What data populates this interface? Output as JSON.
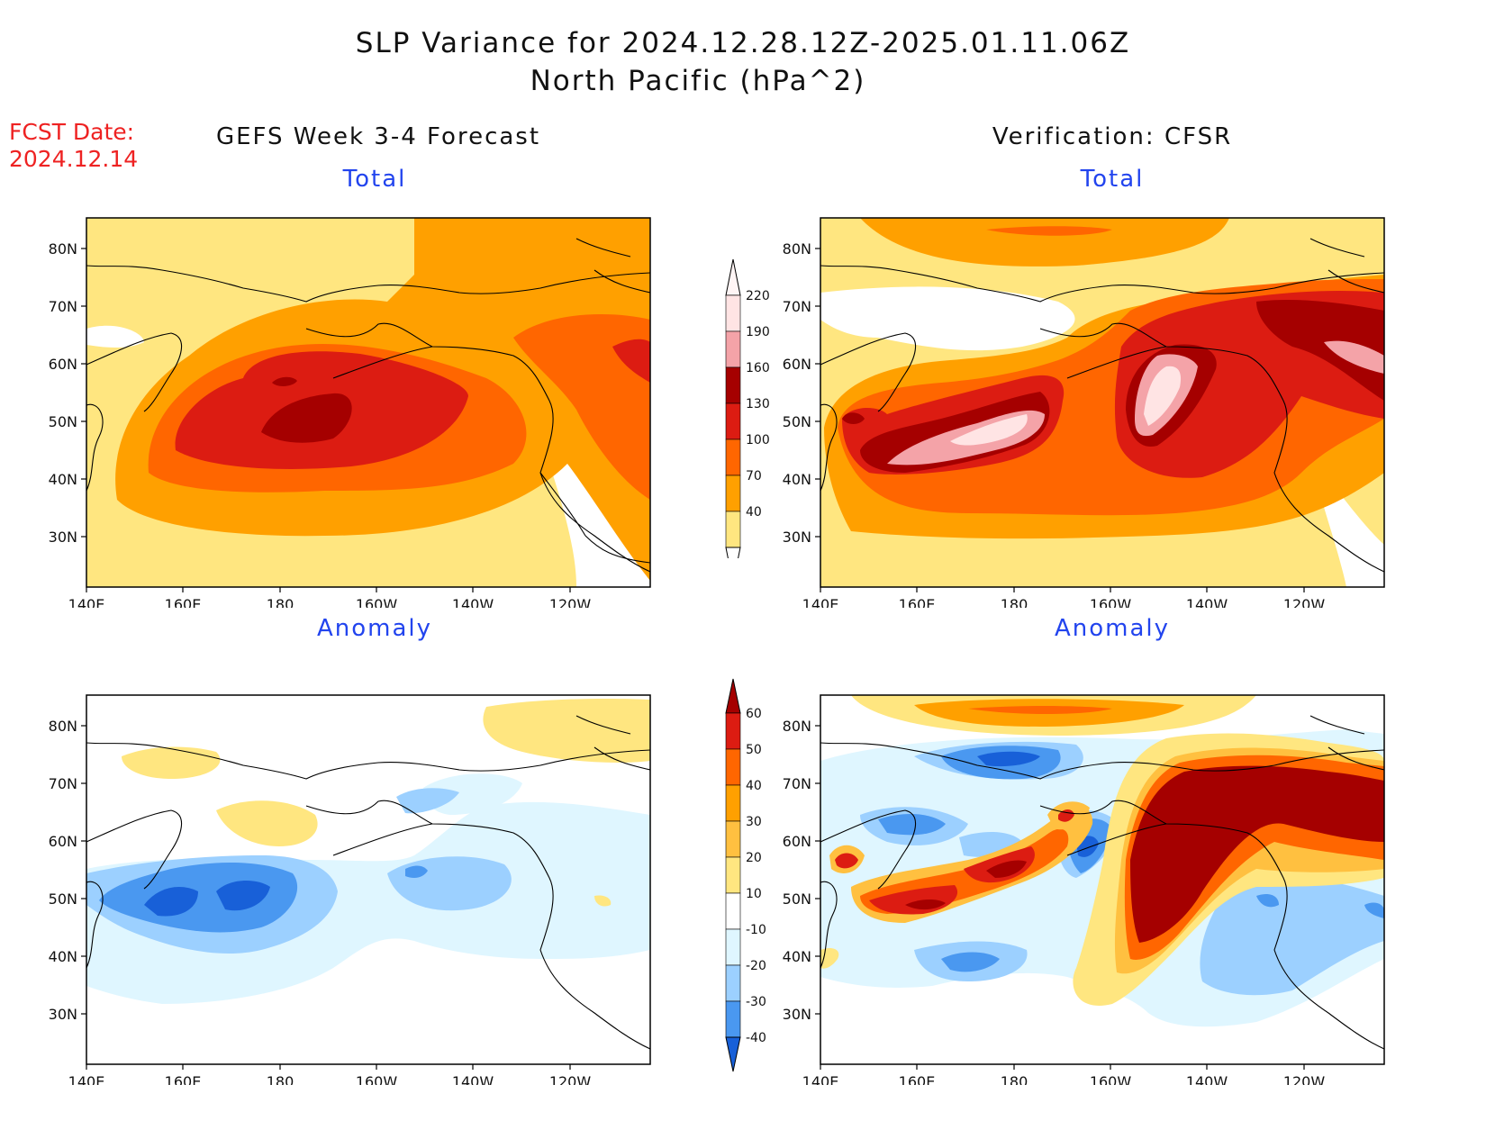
{
  "header": {
    "title_line1": "SLP Variance for 2024.12.28.12Z-2025.01.11.06Z",
    "title_line2": "North Pacific (hPa^2)"
  },
  "fcst_date": {
    "label": "FCST Date:",
    "value": "2024.12.14"
  },
  "columns": {
    "left": "GEFS Week 3-4 Forecast",
    "right": "Verification: CFSR"
  },
  "panels": {
    "total_label": "Total",
    "anomaly_label": "Anomaly"
  },
  "axes": {
    "lat_labels": [
      "80N",
      "70N",
      "60N",
      "50N",
      "40N",
      "30N"
    ],
    "lon_labels": [
      "140E",
      "160E",
      "180",
      "160W",
      "140W",
      "120W"
    ]
  },
  "colorbars": {
    "total": {
      "levels": [
        "220",
        "190",
        "160",
        "130",
        "100",
        "70",
        "40"
      ],
      "colors": [
        "#ffe4e4",
        "#f4a3a8",
        "#a50000",
        "#dc1c12",
        "#ff6600",
        "#ffa000",
        "#ffe680"
      ]
    },
    "anomaly": {
      "levels": [
        "60",
        "50",
        "40",
        "30",
        "20",
        "10",
        "-10",
        "-20",
        "-30",
        "-40"
      ],
      "colors_top": "#a50000",
      "colors": [
        "#a50000",
        "#dc1c12",
        "#ff6600",
        "#ffa000",
        "#ffc040",
        "#ffe680",
        "#ffffff",
        "#dff6ff",
        "#9cd0ff",
        "#4a98f0",
        "#1860d8"
      ],
      "colors_bottom": "#1860d8"
    }
  },
  "palette": {
    "t40": "#ffe680",
    "t70": "#ffa000",
    "t100": "#ff6600",
    "t130": "#dc1c12",
    "t160": "#a50000",
    "t190": "#f4a3a8",
    "t220": "#ffe4e4",
    "a10": "#ffe680",
    "a20": "#ffc040",
    "a30": "#ffa000",
    "a40": "#ff6600",
    "a50": "#dc1c12",
    "a60": "#a50000",
    "n10": "#dff6ff",
    "n20": "#9cd0ff",
    "n30": "#4a98f0",
    "n40": "#1860d8"
  }
}
